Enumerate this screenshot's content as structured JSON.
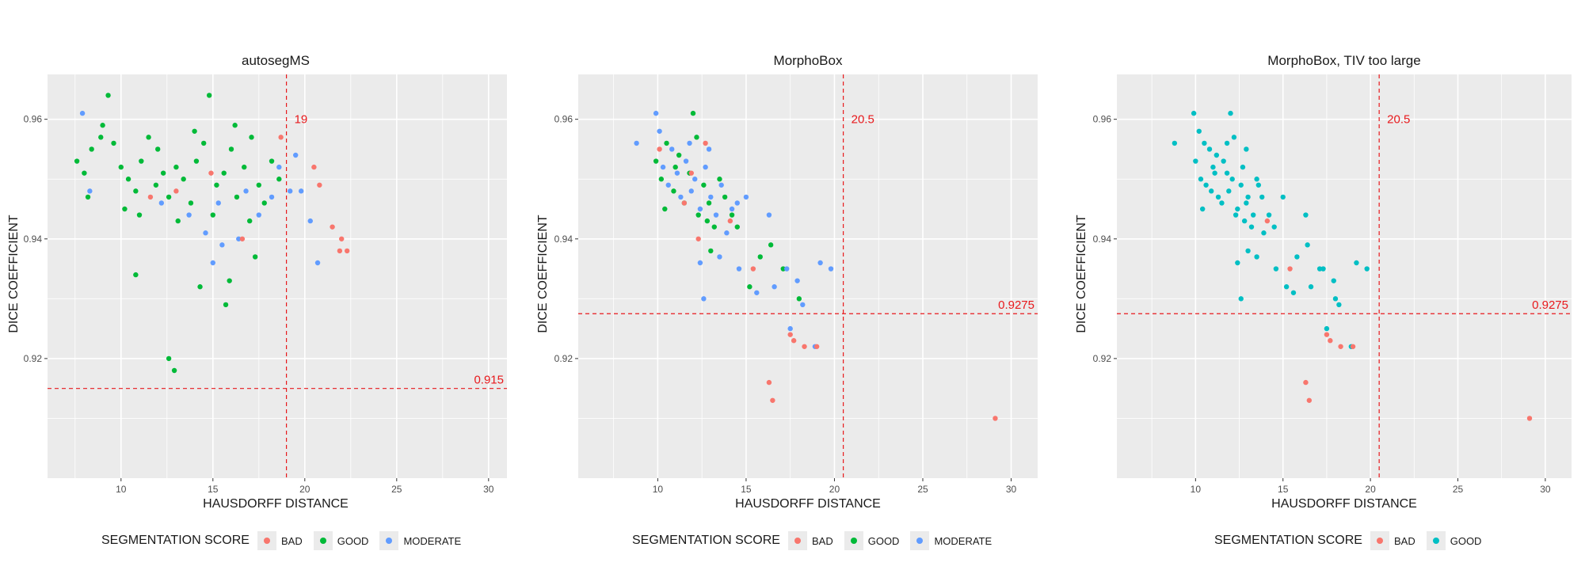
{
  "colors": {
    "BAD": "#f8766d",
    "GOOD": "#00ba38",
    "MODERATE": "#619cff",
    "GOOD_TEAL": "#00bfc4",
    "threshold": "#e8191c",
    "panel_bg": "#ebebeb",
    "grid": "#ffffff"
  },
  "legend_title": "SEGMENTATION SCORE",
  "chart_data": [
    {
      "type": "scatter",
      "title": "autosegMS",
      "xlabel": "HAUSDORFF DISTANCE",
      "ylabel": "DICE COEFFICIENT",
      "xlim": [
        6,
        31
      ],
      "ylim": [
        0.9,
        0.9675
      ],
      "xticks": [
        10,
        15,
        20,
        25,
        30
      ],
      "yticks": [
        0.92,
        0.94,
        0.96
      ],
      "ytick_labels": [
        "0.92",
        "0.94",
        "0.96"
      ],
      "vline": {
        "x": 19,
        "label": "19"
      },
      "hline": {
        "y": 0.915,
        "label": "0.915"
      },
      "legend": [
        "BAD",
        "GOOD",
        "MODERATE"
      ],
      "series": [
        {
          "name": "GOOD",
          "color": "#00ba38",
          "points": [
            [
              7.6,
              0.953
            ],
            [
              8.0,
              0.951
            ],
            [
              8.4,
              0.955
            ],
            [
              8.9,
              0.957
            ],
            [
              9.3,
              0.964
            ],
            [
              9.6,
              0.956
            ],
            [
              10.0,
              0.952
            ],
            [
              10.4,
              0.95
            ],
            [
              10.8,
              0.948
            ],
            [
              11.1,
              0.953
            ],
            [
              11.5,
              0.957
            ],
            [
              11.9,
              0.949
            ],
            [
              12.3,
              0.951
            ],
            [
              12.6,
              0.947
            ],
            [
              13.0,
              0.952
            ],
            [
              13.4,
              0.95
            ],
            [
              13.8,
              0.946
            ],
            [
              14.1,
              0.953
            ],
            [
              14.5,
              0.956
            ],
            [
              14.8,
              0.964
            ],
            [
              15.2,
              0.949
            ],
            [
              15.6,
              0.951
            ],
            [
              16.0,
              0.955
            ],
            [
              16.3,
              0.947
            ],
            [
              16.7,
              0.952
            ],
            [
              17.1,
              0.957
            ],
            [
              17.5,
              0.949
            ],
            [
              17.8,
              0.946
            ],
            [
              18.2,
              0.953
            ],
            [
              18.6,
              0.95
            ],
            [
              8.2,
              0.947
            ],
            [
              9.0,
              0.959
            ],
            [
              10.2,
              0.945
            ],
            [
              11.0,
              0.944
            ],
            [
              12.0,
              0.955
            ],
            [
              13.1,
              0.943
            ],
            [
              14.0,
              0.958
            ],
            [
              15.0,
              0.944
            ],
            [
              16.2,
              0.959
            ],
            [
              17.0,
              0.943
            ],
            [
              10.8,
              0.934
            ],
            [
              12.6,
              0.92
            ],
            [
              12.9,
              0.918
            ],
            [
              14.3,
              0.932
            ],
            [
              15.7,
              0.929
            ],
            [
              15.9,
              0.933
            ],
            [
              17.3,
              0.937
            ]
          ]
        },
        {
          "name": "MODERATE",
          "color": "#619cff",
          "points": [
            [
              7.9,
              0.961
            ],
            [
              8.3,
              0.948
            ],
            [
              12.2,
              0.946
            ],
            [
              13.7,
              0.944
            ],
            [
              14.6,
              0.941
            ],
            [
              15.3,
              0.946
            ],
            [
              15.0,
              0.936
            ],
            [
              15.5,
              0.939
            ],
            [
              16.4,
              0.94
            ],
            [
              17.5,
              0.944
            ],
            [
              18.2,
              0.947
            ],
            [
              19.2,
              0.948
            ],
            [
              19.5,
              0.954
            ],
            [
              19.8,
              0.948
            ],
            [
              20.3,
              0.943
            ],
            [
              20.7,
              0.936
            ],
            [
              18.6,
              0.952
            ],
            [
              16.8,
              0.948
            ]
          ]
        },
        {
          "name": "BAD",
          "color": "#f8766d",
          "points": [
            [
              11.6,
              0.947
            ],
            [
              13.0,
              0.948
            ],
            [
              14.9,
              0.951
            ],
            [
              16.6,
              0.94
            ],
            [
              18.7,
              0.957
            ],
            [
              20.5,
              0.952
            ],
            [
              20.8,
              0.949
            ],
            [
              21.5,
              0.942
            ],
            [
              22.0,
              0.94
            ],
            [
              22.3,
              0.938
            ],
            [
              21.9,
              0.938
            ]
          ]
        }
      ]
    },
    {
      "type": "scatter",
      "title": "MorphoBox",
      "xlabel": "HAUSDORFF DISTANCE",
      "ylabel": "DICE COEFFICIENT",
      "xlim": [
        5.5,
        31.5
      ],
      "ylim": [
        0.9,
        0.9675
      ],
      "xticks": [
        10,
        15,
        20,
        25,
        30
      ],
      "yticks": [
        0.92,
        0.94,
        0.96
      ],
      "ytick_labels": [
        "0.92",
        "0.94",
        "0.96"
      ],
      "vline": {
        "x": 20.5,
        "label": "20.5"
      },
      "hline": {
        "y": 0.9275,
        "label": "0.9275"
      },
      "legend": [
        "BAD",
        "GOOD",
        "MODERATE"
      ],
      "series": [
        {
          "name": "GOOD",
          "color": "#00ba38",
          "points": [
            [
              9.9,
              0.953
            ],
            [
              10.2,
              0.95
            ],
            [
              10.5,
              0.956
            ],
            [
              10.9,
              0.948
            ],
            [
              11.2,
              0.954
            ],
            [
              11.5,
              0.946
            ],
            [
              11.8,
              0.951
            ],
            [
              12.0,
              0.961
            ],
            [
              12.3,
              0.944
            ],
            [
              12.6,
              0.949
            ],
            [
              12.9,
              0.946
            ],
            [
              13.2,
              0.942
            ],
            [
              13.5,
              0.95
            ],
            [
              13.8,
              0.947
            ],
            [
              14.2,
              0.944
            ],
            [
              14.5,
              0.942
            ],
            [
              11.0,
              0.952
            ],
            [
              12.2,
              0.957
            ],
            [
              13.0,
              0.938
            ],
            [
              15.2,
              0.932
            ],
            [
              15.8,
              0.937
            ],
            [
              16.4,
              0.939
            ],
            [
              17.1,
              0.935
            ],
            [
              18.0,
              0.93
            ],
            [
              10.4,
              0.945
            ],
            [
              12.8,
              0.943
            ]
          ]
        },
        {
          "name": "MODERATE",
          "color": "#619cff",
          "points": [
            [
              8.8,
              0.956
            ],
            [
              9.9,
              0.961
            ],
            [
              10.1,
              0.958
            ],
            [
              10.3,
              0.952
            ],
            [
              10.6,
              0.949
            ],
            [
              10.8,
              0.955
            ],
            [
              11.1,
              0.951
            ],
            [
              11.3,
              0.947
            ],
            [
              11.6,
              0.953
            ],
            [
              11.9,
              0.948
            ],
            [
              12.1,
              0.95
            ],
            [
              12.4,
              0.945
            ],
            [
              12.7,
              0.952
            ],
            [
              13.0,
              0.947
            ],
            [
              13.3,
              0.944
            ],
            [
              13.6,
              0.949
            ],
            [
              13.9,
              0.941
            ],
            [
              14.2,
              0.945
            ],
            [
              14.5,
              0.946
            ],
            [
              15.0,
              0.947
            ],
            [
              12.4,
              0.936
            ],
            [
              12.6,
              0.93
            ],
            [
              13.5,
              0.937
            ],
            [
              14.6,
              0.935
            ],
            [
              15.6,
              0.931
            ],
            [
              16.3,
              0.944
            ],
            [
              16.6,
              0.932
            ],
            [
              17.3,
              0.935
            ],
            [
              17.9,
              0.933
            ],
            [
              18.2,
              0.929
            ],
            [
              19.2,
              0.936
            ],
            [
              19.8,
              0.935
            ],
            [
              17.5,
              0.925
            ],
            [
              18.9,
              0.922
            ],
            [
              11.8,
              0.956
            ],
            [
              12.9,
              0.955
            ]
          ]
        },
        {
          "name": "BAD",
          "color": "#f8766d",
          "points": [
            [
              10.1,
              0.955
            ],
            [
              11.5,
              0.946
            ],
            [
              11.9,
              0.951
            ],
            [
              12.3,
              0.94
            ],
            [
              12.7,
              0.956
            ],
            [
              14.1,
              0.943
            ],
            [
              15.4,
              0.935
            ],
            [
              17.5,
              0.924
            ],
            [
              17.7,
              0.923
            ],
            [
              18.3,
              0.922
            ],
            [
              19.0,
              0.922
            ],
            [
              16.3,
              0.916
            ],
            [
              16.5,
              0.913
            ],
            [
              29.1,
              0.91
            ]
          ]
        }
      ]
    },
    {
      "type": "scatter",
      "title": "MorphoBox, TIV too large",
      "xlabel": "HAUSDORFF DISTANCE",
      "ylabel": "DICE COEFFICIENT",
      "xlim": [
        5.5,
        31.5
      ],
      "ylim": [
        0.9,
        0.9675
      ],
      "xticks": [
        10,
        15,
        20,
        25,
        30
      ],
      "yticks": [
        0.92,
        0.94,
        0.96
      ],
      "ytick_labels": [
        "0.92",
        "0.94",
        "0.96"
      ],
      "vline": {
        "x": 20.5,
        "label": "20.5"
      },
      "hline": {
        "y": 0.9275,
        "label": "0.9275"
      },
      "legend": [
        "BAD",
        "GOOD"
      ],
      "series": [
        {
          "name": "GOOD",
          "color": "#00bfc4",
          "points": [
            [
              8.8,
              0.956
            ],
            [
              9.9,
              0.961
            ],
            [
              10.0,
              0.953
            ],
            [
              10.2,
              0.958
            ],
            [
              10.3,
              0.95
            ],
            [
              10.5,
              0.956
            ],
            [
              10.6,
              0.949
            ],
            [
              10.8,
              0.955
            ],
            [
              10.9,
              0.948
            ],
            [
              11.1,
              0.951
            ],
            [
              11.2,
              0.954
            ],
            [
              11.3,
              0.947
            ],
            [
              11.5,
              0.946
            ],
            [
              11.6,
              0.953
            ],
            [
              11.8,
              0.951
            ],
            [
              11.9,
              0.948
            ],
            [
              12.0,
              0.961
            ],
            [
              12.1,
              0.95
            ],
            [
              12.3,
              0.944
            ],
            [
              12.4,
              0.945
            ],
            [
              12.6,
              0.949
            ],
            [
              12.7,
              0.952
            ],
            [
              12.9,
              0.946
            ],
            [
              13.0,
              0.947
            ],
            [
              13.2,
              0.942
            ],
            [
              13.3,
              0.944
            ],
            [
              13.5,
              0.95
            ],
            [
              13.6,
              0.949
            ],
            [
              13.8,
              0.947
            ],
            [
              13.9,
              0.941
            ],
            [
              14.2,
              0.944
            ],
            [
              14.5,
              0.942
            ],
            [
              15.0,
              0.947
            ],
            [
              11.0,
              0.952
            ],
            [
              12.2,
              0.957
            ],
            [
              13.0,
              0.938
            ],
            [
              12.4,
              0.936
            ],
            [
              12.6,
              0.93
            ],
            [
              13.5,
              0.937
            ],
            [
              14.6,
              0.935
            ],
            [
              15.2,
              0.932
            ],
            [
              15.6,
              0.931
            ],
            [
              15.8,
              0.937
            ],
            [
              16.3,
              0.944
            ],
            [
              16.4,
              0.939
            ],
            [
              16.6,
              0.932
            ],
            [
              17.1,
              0.935
            ],
            [
              17.3,
              0.935
            ],
            [
              17.9,
              0.933
            ],
            [
              18.0,
              0.93
            ],
            [
              18.2,
              0.929
            ],
            [
              19.2,
              0.936
            ],
            [
              19.8,
              0.935
            ],
            [
              17.5,
              0.925
            ],
            [
              18.9,
              0.922
            ],
            [
              10.4,
              0.945
            ],
            [
              12.8,
              0.943
            ],
            [
              11.8,
              0.956
            ],
            [
              12.9,
              0.955
            ]
          ]
        },
        {
          "name": "BAD",
          "color": "#f8766d",
          "points": [
            [
              14.1,
              0.943
            ],
            [
              15.4,
              0.935
            ],
            [
              17.5,
              0.924
            ],
            [
              17.7,
              0.923
            ],
            [
              18.3,
              0.922
            ],
            [
              19.0,
              0.922
            ],
            [
              16.3,
              0.916
            ],
            [
              16.5,
              0.913
            ],
            [
              29.1,
              0.91
            ]
          ]
        }
      ]
    }
  ]
}
